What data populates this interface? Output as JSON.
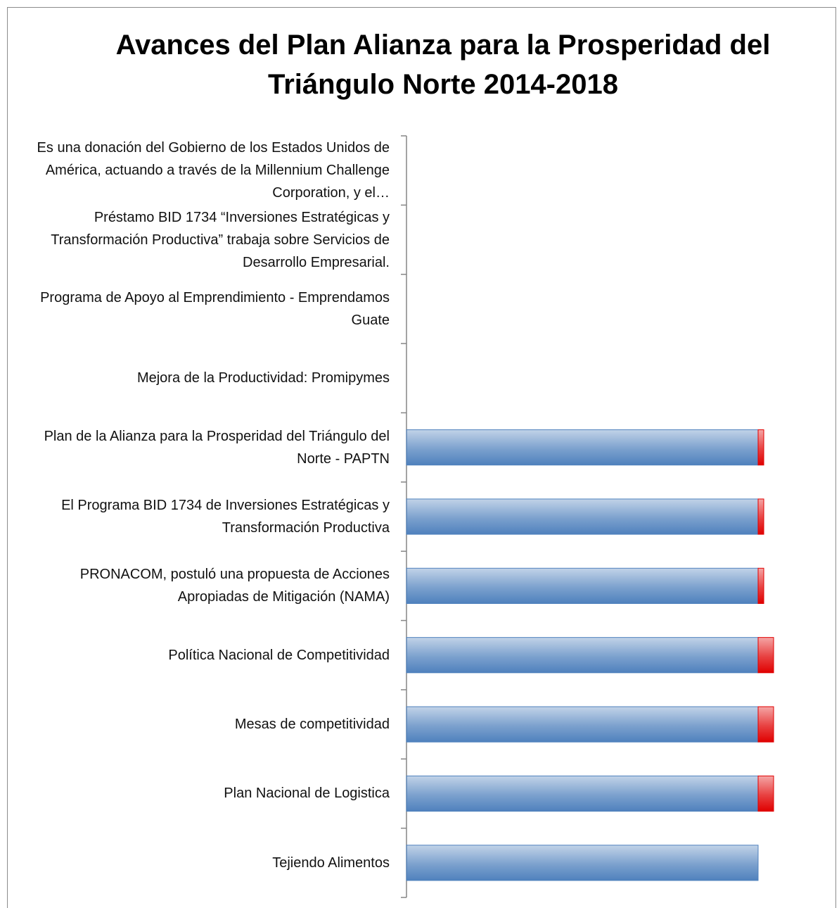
{
  "chart_data": {
    "type": "stacked-barh",
    "title": "Avances del Plan Alianza para la Prosperidad del Triángulo Norte 2014-2018",
    "categories": [
      "Es una donación del Gobierno de los Estados Unidos de América, actuando a través de la Millennium Challenge Corporation, y el…",
      "Préstamo BID 1734 “Inversiones Estratégicas y Transformación Productiva” trabaja sobre Servicios de Desarrollo Empresarial.",
      "Programa de Apoyo al Emprendimiento - Emprendamos Guate",
      "Mejora de la Productividad: Promipymes",
      "Plan de la Alianza para la Prosperidad del Triángulo del Norte - PAPTN",
      "El Programa BID 1734 de Inversiones Estratégicas y Transformación Productiva",
      "PRONACOM, postuló una propuesta de Acciones Apropiadas de Mitigación (NAMA)",
      "Política Nacional de Competitividad",
      "Mesas de competitividad",
      "Plan Nacional de Logistica",
      "Tejiendo Alimentos"
    ],
    "series": [
      {
        "color": "#4f81bd",
        "values": [
          0,
          0,
          0,
          0,
          100,
          100,
          100,
          100,
          100,
          100,
          100
        ]
      },
      {
        "color": "#e00000",
        "values": [
          0,
          0,
          0,
          0,
          1.6,
          1.6,
          1.6,
          4.4,
          4.4,
          4.4,
          0
        ]
      }
    ],
    "xlim": [
      0,
      120
    ]
  }
}
